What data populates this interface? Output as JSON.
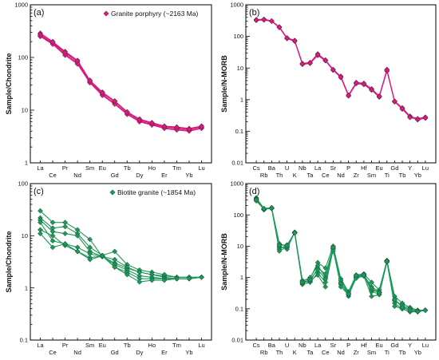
{
  "chart_data": [
    {
      "type": "line",
      "panel_label": "(a)",
      "ylabel": "Sample/Chondrite",
      "y_scale": "log",
      "ylim": [
        1,
        1000
      ],
      "y_ticks": [
        "1",
        "10",
        "100",
        "1000"
      ],
      "categories": [
        "La",
        "Ce",
        "Pr",
        "Nd",
        "Sm",
        "Eu",
        "Gd",
        "Tb",
        "Dy",
        "Ho",
        "Er",
        "Tm",
        "Yb",
        "Lu"
      ],
      "tick_rows": [
        "top",
        "bottom",
        "top",
        "bottom",
        "top",
        "top",
        "bottom",
        "top",
        "bottom",
        "top",
        "bottom",
        "top",
        "bottom",
        "top"
      ],
      "legend": "Granite porphyry (~2163 Ma)",
      "legend_position": "top-right",
      "color": "#d81b7f",
      "marker": "diamond",
      "series": [
        {
          "values": [
            290,
            200,
            130,
            88,
            37,
            22,
            15,
            9.3,
            6.8,
            5.8,
            5.0,
            4.8,
            4.5,
            5.0
          ]
        },
        {
          "values": [
            275,
            190,
            122,
            83,
            35,
            21,
            14.5,
            9.0,
            6.5,
            5.6,
            4.8,
            4.6,
            4.3,
            4.8
          ]
        },
        {
          "values": [
            260,
            185,
            115,
            78,
            34,
            20,
            13.5,
            8.6,
            6.2,
            5.4,
            4.6,
            4.4,
            4.1,
            4.6
          ]
        },
        {
          "values": [
            250,
            178,
            110,
            75,
            33,
            19,
            13.0,
            8.3,
            6.0,
            5.2,
            4.5,
            4.2,
            4.0,
            4.5
          ]
        },
        {
          "values": [
            268,
            195,
            125,
            86,
            36,
            21.5,
            14.8,
            9.1,
            6.6,
            5.7,
            4.9,
            4.7,
            4.4,
            4.9
          ]
        }
      ]
    },
    {
      "type": "line",
      "panel_label": "(b)",
      "ylabel": "Sample/N-MORB",
      "y_scale": "log",
      "ylim": [
        0.01,
        1000
      ],
      "y_ticks": [
        "0.01",
        "0.1",
        "1",
        "10",
        "100",
        "1000"
      ],
      "categories": [
        "Cs",
        "Rb",
        "Ba",
        "Th",
        "U",
        "K",
        "Nb",
        "Ta",
        "La",
        "Ce",
        "Sr",
        "Nd",
        "P",
        "Zr",
        "Hf",
        "Sm",
        "Eu",
        "Ti",
        "Gd",
        "Tb",
        "Y",
        "Yb",
        "Lu"
      ],
      "tick_rows": [
        "top",
        "bottom",
        "top",
        "bottom",
        "top",
        "bottom",
        "top",
        "bottom",
        "top",
        "bottom",
        "top",
        "bottom",
        "top",
        "bottom",
        "top",
        "bottom",
        "top",
        "bottom",
        "top",
        "bottom",
        "top",
        "bottom",
        "top"
      ],
      "color": "#d81b7f",
      "marker": "diamond",
      "series": [
        {
          "values": [
            340,
            350,
            310,
            200,
            90,
            75,
            14,
            15,
            28,
            18,
            9,
            5.5,
            1.4,
            3.5,
            3.3,
            2.2,
            1.3,
            9.0,
            0.9,
            0.55,
            0.3,
            0.25,
            0.28
          ]
        },
        {
          "values": [
            320,
            330,
            300,
            190,
            85,
            70,
            13,
            14,
            25,
            17,
            8.5,
            5.0,
            1.3,
            3.2,
            3.0,
            2.0,
            1.2,
            8.0,
            0.85,
            0.5,
            0.28,
            0.23,
            0.26
          ]
        },
        {
          "values": [
            330,
            340,
            305,
            195,
            88,
            72,
            13.5,
            14.5,
            26,
            17.5,
            8.8,
            5.2,
            1.35,
            3.3,
            3.1,
            2.1,
            1.25,
            8.5,
            0.88,
            0.52,
            0.27,
            0.24,
            0.27
          ]
        }
      ]
    },
    {
      "type": "line",
      "panel_label": "(c)",
      "ylabel": "Sample/Chondrite",
      "y_scale": "log",
      "ylim": [
        0.1,
        100
      ],
      "y_ticks": [
        "0.1",
        "1",
        "10",
        "100"
      ],
      "categories": [
        "La",
        "Ce",
        "Pr",
        "Nd",
        "Sm",
        "Eu",
        "Gd",
        "Tb",
        "Dy",
        "Ho",
        "Er",
        "Tm",
        "Yb",
        "Lu"
      ],
      "tick_rows": [
        "top",
        "bottom",
        "top",
        "bottom",
        "top",
        "top",
        "bottom",
        "top",
        "bottom",
        "top",
        "bottom",
        "top",
        "bottom",
        "top"
      ],
      "legend": "Biotite granite (~1854 Ma)",
      "legend_position": "top-left",
      "color": "#1a9a5a",
      "marker": "diamond",
      "series": [
        {
          "values": [
            30,
            18,
            18,
            13,
            8.5,
            4.0,
            3.0,
            2.4,
            2.0,
            1.8,
            1.7,
            1.6,
            1.6,
            1.6
          ]
        },
        {
          "values": [
            22,
            14,
            15,
            11,
            6.0,
            4.2,
            5.0,
            2.8,
            2.2,
            2.0,
            1.8,
            1.6,
            1.6,
            1.6
          ]
        },
        {
          "values": [
            20,
            12,
            11,
            10,
            5.0,
            4.0,
            3.5,
            2.5,
            2.0,
            1.8,
            1.6,
            1.5,
            1.5,
            1.6
          ]
        },
        {
          "values": [
            18,
            8,
            7,
            6,
            4.5,
            4.0,
            2.8,
            2.2,
            1.7,
            1.6,
            1.5,
            1.5,
            1.5,
            1.6
          ]
        },
        {
          "values": [
            13,
            10,
            6.5,
            5.0,
            3.8,
            4.1,
            2.5,
            2.0,
            1.5,
            1.5,
            1.5,
            1.5,
            1.5,
            1.6
          ]
        },
        {
          "values": [
            11,
            6,
            7,
            5.0,
            3.5,
            4.1,
            2.5,
            1.8,
            1.3,
            1.4,
            1.4,
            1.5,
            1.5,
            1.6
          ]
        }
      ]
    },
    {
      "type": "line",
      "panel_label": "(d)",
      "ylabel": "Sample/N-MORB",
      "y_scale": "log",
      "ylim": [
        0.01,
        1000
      ],
      "y_ticks": [
        "0.01",
        "0.1",
        "1",
        "10",
        "100",
        "1000"
      ],
      "categories": [
        "Cs",
        "Rb",
        "Ba",
        "Th",
        "U",
        "K",
        "Nb",
        "Ta",
        "La",
        "Ce",
        "Sr",
        "Nd",
        "P",
        "Zr",
        "Hf",
        "Sm",
        "Eu",
        "Ti",
        "Gd",
        "Tb",
        "Y",
        "Yb",
        "Lu"
      ],
      "tick_rows": [
        "top",
        "bottom",
        "top",
        "bottom",
        "top",
        "bottom",
        "top",
        "bottom",
        "top",
        "bottom",
        "top",
        "bottom",
        "top",
        "bottom",
        "top",
        "bottom",
        "top",
        "bottom",
        "top",
        "bottom",
        "top",
        "bottom",
        "top"
      ],
      "color": "#1a9a5a",
      "marker": "diamond",
      "series": [
        {
          "values": [
            350,
            160,
            170,
            12,
            10,
            28,
            0.8,
            0.9,
            3.0,
            2.0,
            10,
            0.9,
            0.35,
            1.2,
            1.3,
            0.7,
            0.4,
            3.5,
            0.25,
            0.15,
            0.11,
            0.09,
            0.09
          ]
        },
        {
          "values": [
            330,
            150,
            165,
            9,
            9,
            27,
            0.7,
            0.75,
            2.0,
            1.3,
            8.5,
            0.6,
            0.3,
            1.0,
            1.2,
            0.5,
            0.35,
            3.2,
            0.2,
            0.12,
            0.09,
            0.08,
            0.09
          ]
        },
        {
          "values": [
            300,
            155,
            160,
            8,
            11,
            26,
            0.6,
            0.7,
            1.4,
            0.7,
            9,
            0.7,
            0.25,
            1.1,
            1.25,
            0.35,
            0.3,
            3.4,
            0.15,
            0.1,
            0.08,
            0.08,
            0.09
          ]
        },
        {
          "values": [
            320,
            145,
            168,
            10,
            8,
            28,
            0.75,
            1.0,
            2.4,
            1.0,
            7,
            0.8,
            0.32,
            1.05,
            1.15,
            0.4,
            0.33,
            3.3,
            0.18,
            0.13,
            0.1,
            0.085,
            0.09
          ]
        },
        {
          "values": [
            280,
            150,
            162,
            7,
            9.5,
            27,
            0.65,
            0.8,
            1.2,
            0.5,
            8,
            0.5,
            0.28,
            0.95,
            1.1,
            0.25,
            0.28,
            3.1,
            0.12,
            0.1,
            0.08,
            0.08,
            0.09
          ]
        },
        {
          "values": [
            310,
            158,
            166,
            11,
            10.5,
            26.5,
            0.7,
            0.85,
            1.8,
            0.9,
            9.2,
            0.65,
            0.3,
            1.15,
            1.2,
            0.45,
            0.32,
            3.3,
            0.2,
            0.11,
            0.09,
            0.082,
            0.09
          ]
        }
      ]
    }
  ]
}
